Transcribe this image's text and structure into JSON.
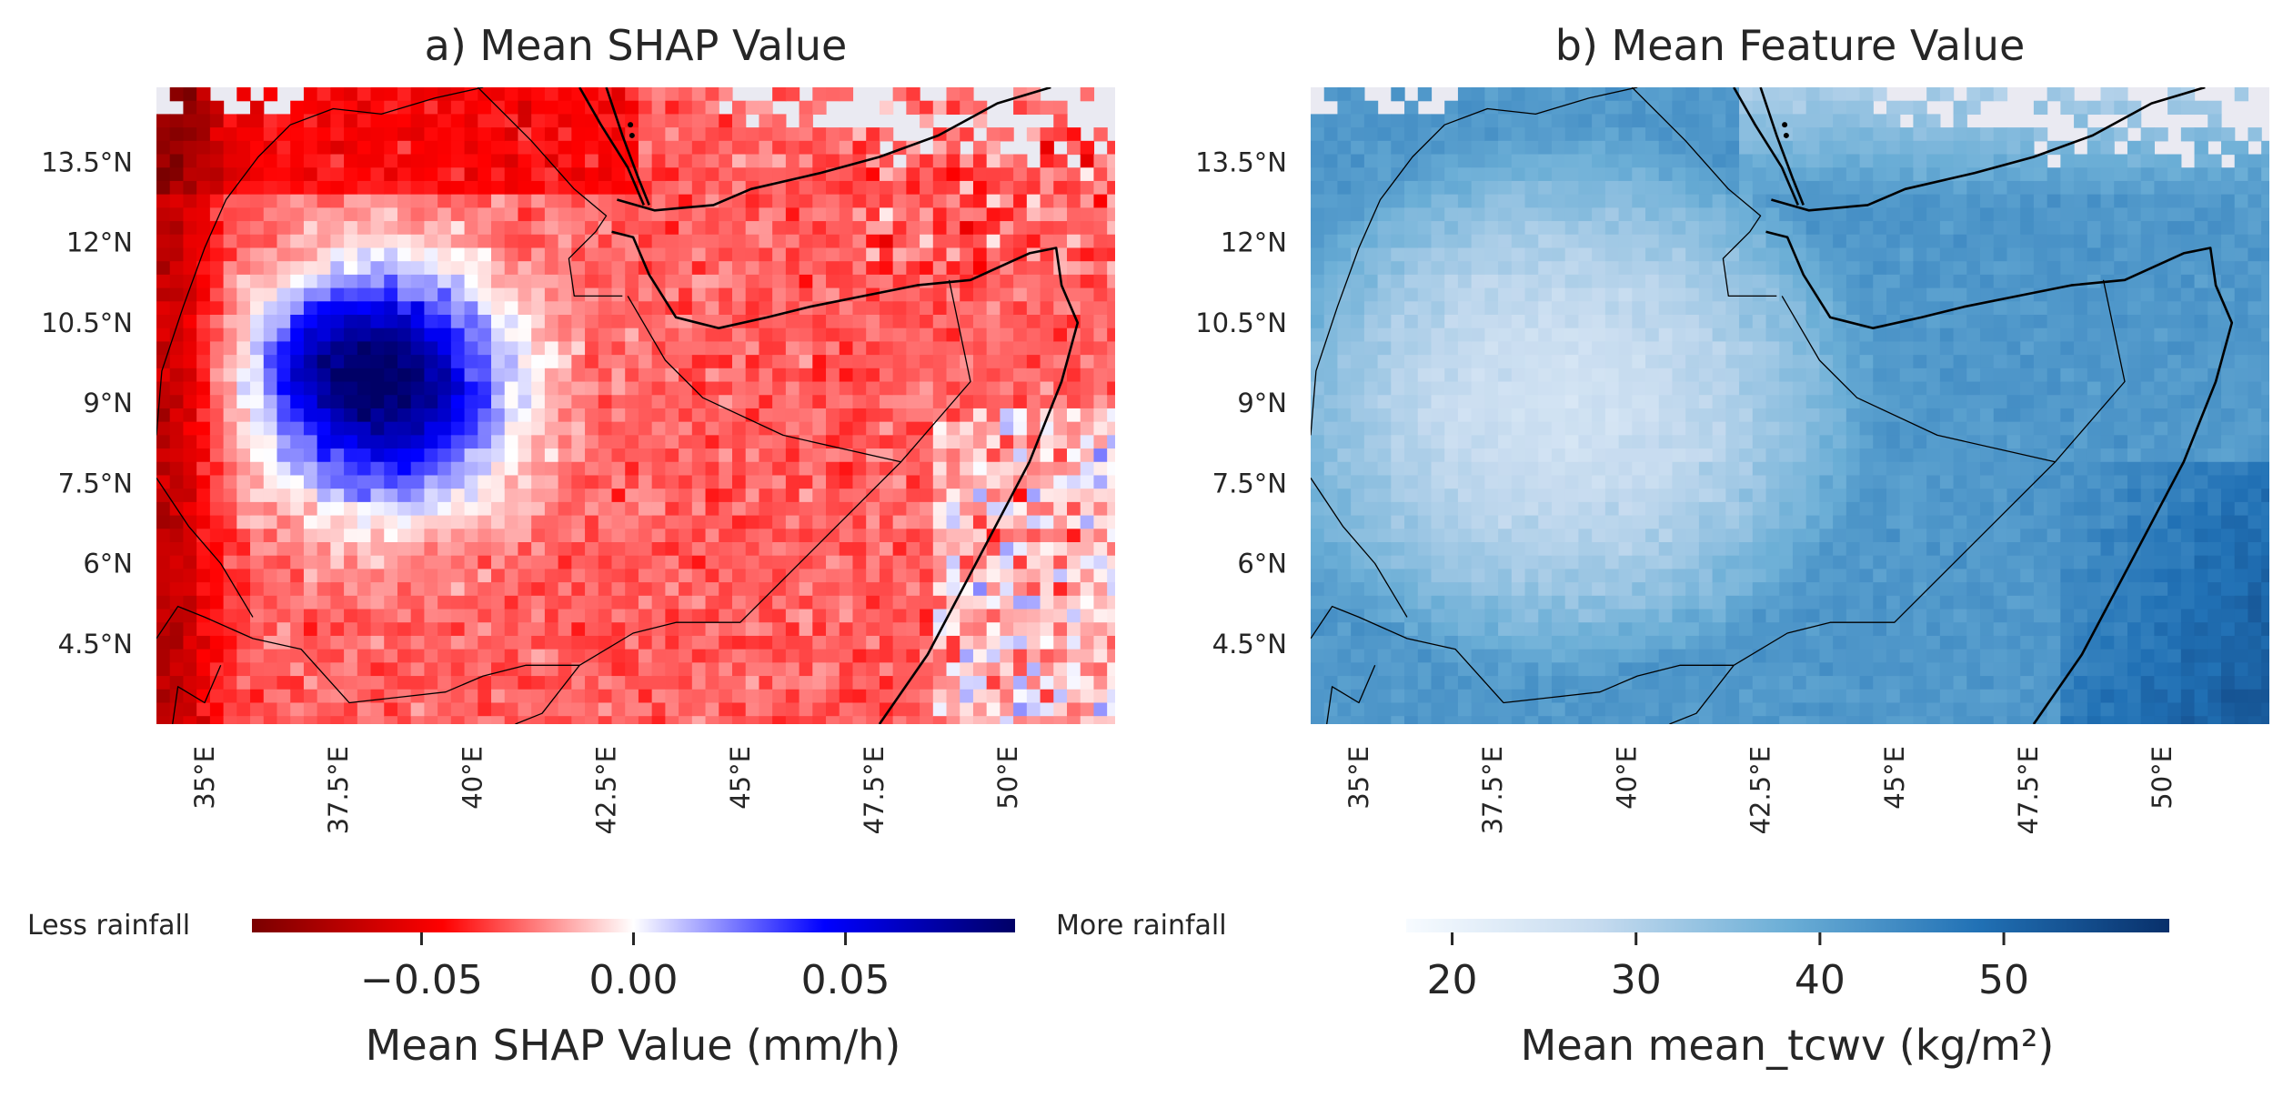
{
  "chart_data": [
    {
      "type": "heatmap",
      "title": "a) Mean SHAP Value",
      "x_ticks": [
        "35°E",
        "37.5°E",
        "40°E",
        "42.5°E",
        "45°E",
        "47.5°E",
        "50°E"
      ],
      "x_tick_values": [
        35,
        37.5,
        40,
        42.5,
        45,
        47.5,
        50
      ],
      "y_ticks": [
        "13.5°N",
        "12°N",
        "10.5°N",
        "9°N",
        "7.5°N",
        "6°N",
        "4.5°N"
      ],
      "y_tick_values": [
        13.5,
        12,
        10.5,
        9,
        7.5,
        6,
        4.5
      ],
      "xlim": [
        34.1,
        52.0
      ],
      "ylim": [
        3.0,
        14.9
      ],
      "grid_resolution_deg": 0.25,
      "colormap": "seismic_r",
      "colors": [
        "#7a0000",
        "#ff0000",
        "#ffffff",
        "#0000ff",
        "#000066"
      ],
      "missing_color": "#eaeaf2",
      "colorbar": {
        "label": "Mean SHAP Value (mm/h)",
        "range": [
          -0.09,
          0.09
        ],
        "ticks": [
          "−0.05",
          "0.00",
          "0.05"
        ],
        "tick_values": [
          -0.05,
          0.0,
          0.05
        ],
        "left_text": "Less rainfall",
        "right_text": "More rainfall"
      },
      "pattern": {
        "background_mean": -0.028,
        "features": [
          {
            "kind": "negative_lobe_highland",
            "lon": 38.6,
            "lat": 9.3,
            "value": 0.085
          },
          {
            "kind": "strong_negative_west_edge",
            "lon": 34.6,
            "lat": 10.8,
            "value": -0.08
          },
          {
            "kind": "mixed_ocean_southeast",
            "lon": 50.5,
            "lat": 6.0,
            "value": 0.01
          }
        ]
      }
    },
    {
      "type": "heatmap",
      "title": "b) Mean Feature Value",
      "x_ticks": [
        "35°E",
        "37.5°E",
        "40°E",
        "42.5°E",
        "45°E",
        "47.5°E",
        "50°E"
      ],
      "x_tick_values": [
        35,
        37.5,
        40,
        42.5,
        45,
        47.5,
        50
      ],
      "y_ticks": [
        "13.5°N",
        "12°N",
        "10.5°N",
        "9°N",
        "7.5°N",
        "6°N",
        "4.5°N"
      ],
      "y_tick_values": [
        13.5,
        12,
        10.5,
        9,
        7.5,
        6,
        4.5
      ],
      "xlim": [
        34.1,
        52.0
      ],
      "ylim": [
        3.0,
        14.9
      ],
      "grid_resolution_deg": 0.25,
      "colormap": "Blues",
      "colors": [
        "#f7fbff",
        "#c6dbef",
        "#6baed6",
        "#2171b5",
        "#08306b"
      ],
      "missing_color": "#eaeaf2",
      "colorbar": {
        "label": "Mean mean_tcwv (kg/m²)",
        "range": [
          17.5,
          59
        ],
        "ticks": [
          "20",
          "30",
          "40",
          "50"
        ],
        "tick_values": [
          20,
          30,
          40,
          50
        ]
      },
      "pattern": {
        "minimum_center": {
          "lon": 39.0,
          "lat": 9.0,
          "value": 26
        },
        "maximum_region": {
          "lon": 51.5,
          "lat": 4.0,
          "value": 52
        }
      }
    }
  ]
}
